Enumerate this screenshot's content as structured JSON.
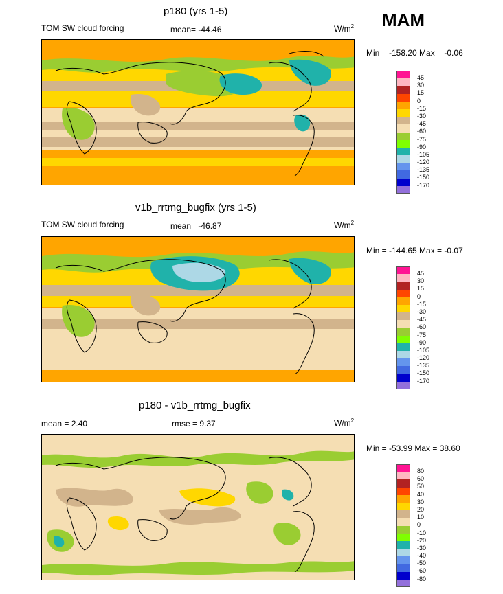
{
  "season": "MAM",
  "panels": [
    {
      "title": "p180 (yrs 1-5)",
      "left_label": "TOM SW cloud forcing",
      "mid_label": "mean= -44.46",
      "units_base": "W/m",
      "units_sup": "2",
      "minmax": "Min = -158.20 Max =  -0.06",
      "legend_labels": [
        "45",
        "30",
        "15",
        "0",
        "-15",
        "-30",
        "-45",
        "-60",
        "-75",
        "-90",
        "-105",
        "-120",
        "-135",
        "-150",
        "-170"
      ],
      "legend_colors": [
        "#ff1493",
        "#ffb6c1",
        "#b22222",
        "#ff4500",
        "#ffa500",
        "#ffd700",
        "#d2b48c",
        "#f5deb3",
        "#9acd32",
        "#7fff00",
        "#20b2aa",
        "#add8e6",
        "#6495ed",
        "#4169e1",
        "#0000cd",
        "#9370db"
      ]
    },
    {
      "title": "v1b_rrtmg_bugfix (yrs 1-5)",
      "left_label": "TOM SW cloud forcing",
      "mid_label": "mean= -46.87",
      "units_base": "W/m",
      "units_sup": "2",
      "minmax": "Min = -144.65 Max =  -0.07",
      "legend_labels": [
        "45",
        "30",
        "15",
        "0",
        "-15",
        "-30",
        "-45",
        "-60",
        "-75",
        "-90",
        "-105",
        "-120",
        "-135",
        "-150",
        "-170"
      ],
      "legend_colors": [
        "#ff1493",
        "#ffb6c1",
        "#b22222",
        "#ff4500",
        "#ffa500",
        "#ffd700",
        "#d2b48c",
        "#f5deb3",
        "#9acd32",
        "#7fff00",
        "#20b2aa",
        "#add8e6",
        "#6495ed",
        "#4169e1",
        "#0000cd",
        "#9370db"
      ]
    },
    {
      "title": "p180 - v1b_rrtmg_bugfix",
      "left_label": "mean =   2.40",
      "mid_label": "rmse =   9.37",
      "units_base": "W/m",
      "units_sup": "2",
      "minmax": "Min = -53.99 Max =  38.60",
      "legend_labels": [
        "80",
        "60",
        "50",
        "40",
        "30",
        "20",
        "10",
        "0",
        "-10",
        "-20",
        "-30",
        "-40",
        "-50",
        "-60",
        "-80"
      ],
      "legend_colors": [
        "#ff1493",
        "#ffb6c1",
        "#b22222",
        "#ff4500",
        "#ffa500",
        "#ffd700",
        "#d2b48c",
        "#f5deb3",
        "#9acd32",
        "#7fff00",
        "#20b2aa",
        "#add8e6",
        "#6495ed",
        "#4169e1",
        "#0000cd",
        "#9370db"
      ]
    }
  ]
}
